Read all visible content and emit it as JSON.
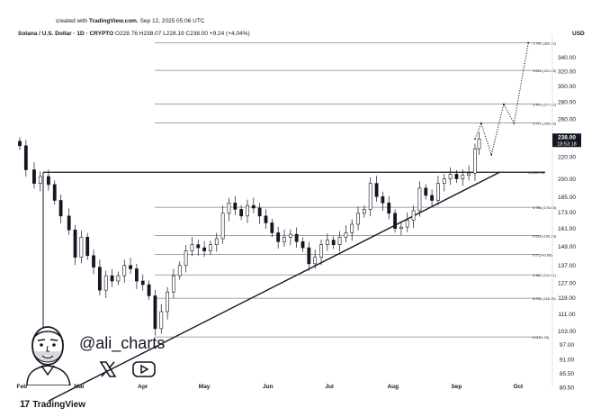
{
  "header": {
    "created_prefix": "created with ",
    "created_by": "TradingView.com",
    "created_date": ", Sep 12, 2025 05:06 UTC",
    "symbol": "Solana / U.S. Dollar · 1D · CRYPTO",
    "ohlc": " O228.76 H238.07 L228.19 C238.00 +9.24 (+4.04%)",
    "currency": "USD"
  },
  "watermark": {
    "handle": "@ali_charts",
    "icons": [
      "avatar-illustration",
      "x-icon",
      "youtube-icon"
    ]
  },
  "footer": {
    "brand": "TradingView"
  },
  "colors": {
    "candle": "#131722",
    "fib_line": "#131722",
    "trend_line": "#131722",
    "price_badge_bg": "#131722",
    "price_badge_text": "#ffffff"
  },
  "chart_data": {
    "type": "candlestick",
    "symbol": "Solana / U.S. Dollar",
    "interval": "1D",
    "x_tick_labels": [
      "Feb",
      "Mar",
      "Apr",
      "May",
      "Jun",
      "Jul",
      "Aug",
      "Sep",
      "Oct"
    ],
    "y_tick_labels": [
      "340.00",
      "320.00",
      "300.00",
      "280.00",
      "260.00",
      "240.00",
      "220.00",
      "200.00",
      "185.00",
      "173.00",
      "161.00",
      "149.00",
      "137.00",
      "127.00",
      "119.00",
      "111.00",
      "103.00",
      "97.00",
      "91.00",
      "85.50",
      "80.50"
    ],
    "y_scale": "log",
    "ylim": [
      80.5,
      370
    ],
    "last_price": {
      "price": "238.00",
      "countdown": "18:53:18"
    },
    "fib_levels": [
      {
        "ratio": 0,
        "label": "0 (100.29)",
        "price": 100.29
      },
      {
        "ratio": 0.236,
        "label": "0.236 (118.75)",
        "price": 118.75
      },
      {
        "ratio": 0.382,
        "label": "0.382 (131.51)",
        "price": 131.51
      },
      {
        "ratio": 0.5,
        "label": "0.5 (143.65)",
        "price": 143.65
      },
      {
        "ratio": 0.618,
        "label": "0.618 (156.23)",
        "price": 156.23
      },
      {
        "ratio": 0.786,
        "label": "0.786 (176.63)",
        "price": 176.63
      },
      {
        "ratio": 1,
        "label": "1 (205.78)",
        "price": 205.78
      },
      {
        "ratio": 1.272,
        "label": "1.272 (255.09)",
        "price": 255.09
      },
      {
        "ratio": 1.414,
        "label": "1.414 (277.22)",
        "price": 277.22
      },
      {
        "ratio": 1.618,
        "label": "1.618 (321.08)",
        "price": 321.08
      },
      {
        "ratio": 1.786,
        "label": "1.786 (362.32)",
        "price": 362.32
      }
    ],
    "resistance_price": 205.78,
    "trendline": [
      {
        "date": "Apr 7",
        "price": 96
      },
      {
        "date": "Sep 22",
        "price": 205.78
      }
    ],
    "projection": [
      {
        "date": "Sep 10",
        "price": 238
      },
      {
        "date": "Sep 13",
        "price": 255
      },
      {
        "date": "Sep 18",
        "price": 222
      },
      {
        "date": "Sep 24",
        "price": 277
      },
      {
        "date": "Sep 29",
        "price": 255
      },
      {
        "date": "Oct 6",
        "price": 362
      }
    ],
    "closes": [
      {
        "date": "Jan 31",
        "close": 231
      },
      {
        "date": "Feb 3",
        "close": 208
      },
      {
        "date": "Feb 7",
        "close": 196
      },
      {
        "date": "Feb 10",
        "close": 202
      },
      {
        "date": "Feb 14",
        "close": 195
      },
      {
        "date": "Feb 17",
        "close": 182
      },
      {
        "date": "Feb 20",
        "close": 170
      },
      {
        "date": "Feb 24",
        "close": 160
      },
      {
        "date": "Feb 27",
        "close": 142
      },
      {
        "date": "Mar 2",
        "close": 155
      },
      {
        "date": "Mar 5",
        "close": 143
      },
      {
        "date": "Mar 8",
        "close": 136
      },
      {
        "date": "Mar 11",
        "close": 123
      },
      {
        "date": "Mar 14",
        "close": 131
      },
      {
        "date": "Mar 17",
        "close": 128
      },
      {
        "date": "Mar 20",
        "close": 131
      },
      {
        "date": "Mar 23",
        "close": 137
      },
      {
        "date": "Mar 26",
        "close": 135
      },
      {
        "date": "Mar 29",
        "close": 128
      },
      {
        "date": "Apr 1",
        "close": 126
      },
      {
        "date": "Apr 4",
        "close": 120
      },
      {
        "date": "Apr 7",
        "close": 104
      },
      {
        "date": "Apr 10",
        "close": 112
      },
      {
        "date": "Apr 13",
        "close": 122
      },
      {
        "date": "Apr 16",
        "close": 131
      },
      {
        "date": "Apr 19",
        "close": 137
      },
      {
        "date": "Apr 22",
        "close": 146
      },
      {
        "date": "Apr 25",
        "close": 150
      },
      {
        "date": "Apr 28",
        "close": 148
      },
      {
        "date": "May 1",
        "close": 146
      },
      {
        "date": "May 4",
        "close": 150
      },
      {
        "date": "May 7",
        "close": 154
      },
      {
        "date": "May 10",
        "close": 172
      },
      {
        "date": "May 13",
        "close": 180
      },
      {
        "date": "May 16",
        "close": 175
      },
      {
        "date": "May 19",
        "close": 170
      },
      {
        "date": "May 22",
        "close": 178
      },
      {
        "date": "May 25",
        "close": 176
      },
      {
        "date": "May 28",
        "close": 170
      },
      {
        "date": "May 31",
        "close": 165
      },
      {
        "date": "Jun 3",
        "close": 158
      },
      {
        "date": "Jun 6",
        "close": 152
      },
      {
        "date": "Jun 9",
        "close": 155
      },
      {
        "date": "Jun 12",
        "close": 157
      },
      {
        "date": "Jun 15",
        "close": 152
      },
      {
        "date": "Jun 18",
        "close": 148
      },
      {
        "date": "Jun 21",
        "close": 138
      },
      {
        "date": "Jun 24",
        "close": 142
      },
      {
        "date": "Jun 27",
        "close": 150
      },
      {
        "date": "Jun 30",
        "close": 153
      },
      {
        "date": "Jul 3",
        "close": 150
      },
      {
        "date": "Jul 6",
        "close": 155
      },
      {
        "date": "Jul 9",
        "close": 158
      },
      {
        "date": "Jul 12",
        "close": 164
      },
      {
        "date": "Jul 15",
        "close": 172
      },
      {
        "date": "Jul 18",
        "close": 175
      },
      {
        "date": "Jul 21",
        "close": 196
      },
      {
        "date": "Jul 24",
        "close": 185
      },
      {
        "date": "Jul 27",
        "close": 180
      },
      {
        "date": "Jul 30",
        "close": 172
      },
      {
        "date": "Aug 2",
        "close": 161
      },
      {
        "date": "Aug 5",
        "close": 162
      },
      {
        "date": "Aug 8",
        "close": 167
      },
      {
        "date": "Aug 11",
        "close": 174
      },
      {
        "date": "Aug 14",
        "close": 192
      },
      {
        "date": "Aug 17",
        "close": 186
      },
      {
        "date": "Aug 20",
        "close": 182
      },
      {
        "date": "Aug 23",
        "close": 196
      },
      {
        "date": "Aug 26",
        "close": 200
      },
      {
        "date": "Aug 29",
        "close": 204
      },
      {
        "date": "Sep 1",
        "close": 200
      },
      {
        "date": "Sep 4",
        "close": 203
      },
      {
        "date": "Sep 7",
        "close": 205
      },
      {
        "date": "Sep 10",
        "close": 228
      },
      {
        "date": "Sep 12",
        "close": 238
      }
    ]
  }
}
